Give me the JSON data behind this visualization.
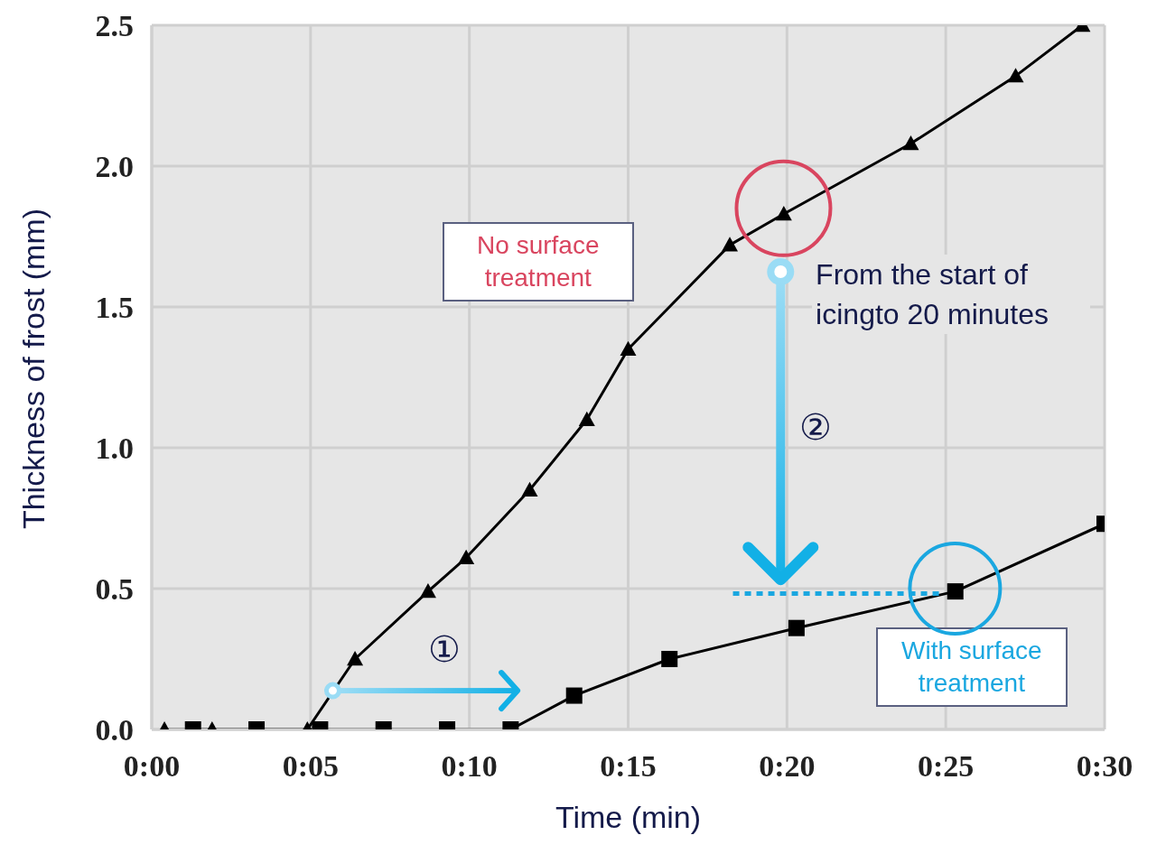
{
  "chart_data": {
    "type": "line",
    "xlabel": "Time (min)",
    "ylabel": "Thickness of frost (mm)",
    "xlim": [
      0,
      30
    ],
    "xticks": [
      {
        "value": 0,
        "label": "0:00"
      },
      {
        "value": 5,
        "label": "0:05"
      },
      {
        "value": 10,
        "label": "0:10"
      },
      {
        "value": 15,
        "label": "0:15"
      },
      {
        "value": 20,
        "label": "0:20"
      },
      {
        "value": 25,
        "label": "0:25"
      },
      {
        "value": 30,
        "label": "0:30"
      }
    ],
    "ylim": [
      0,
      2.5
    ],
    "yticks": [
      {
        "value": 0,
        "label": "0.0"
      },
      {
        "value": 0.5,
        "label": "0.5"
      },
      {
        "value": 1,
        "label": "1.0"
      },
      {
        "value": 1.5,
        "label": "1.5"
      },
      {
        "value": 2,
        "label": "2.0"
      },
      {
        "value": 2.5,
        "label": "2.5"
      }
    ],
    "grid": true,
    "line_style": "solid",
    "series": [
      {
        "name": "No surface treatment",
        "color": "#000000",
        "marker": "triangle",
        "x": [
          0.4,
          1.9,
          4.9,
          6.4,
          8.7,
          9.9,
          11.9,
          13.7,
          15,
          18.2,
          19.9,
          23.9,
          27.2,
          29.3
        ],
        "values": [
          0,
          0,
          0,
          0.25,
          0.49,
          0.61,
          0.85,
          1.1,
          1.35,
          1.72,
          1.83,
          2.08,
          2.32,
          2.5
        ]
      },
      {
        "name": "With surface treatment",
        "color": "#000000",
        "marker": "square",
        "x": [
          1.3,
          3.3,
          5.3,
          7.3,
          9.3,
          11.3,
          13.3,
          16.3,
          20.3,
          25.3,
          30
        ],
        "values": [
          0,
          0,
          0,
          0,
          0,
          0,
          0.12,
          0.25,
          0.36,
          0.49,
          0.73
        ]
      }
    ],
    "annotations": [
      "From the start of icingto 20 minutes",
      "①",
      "②"
    ]
  }
}
